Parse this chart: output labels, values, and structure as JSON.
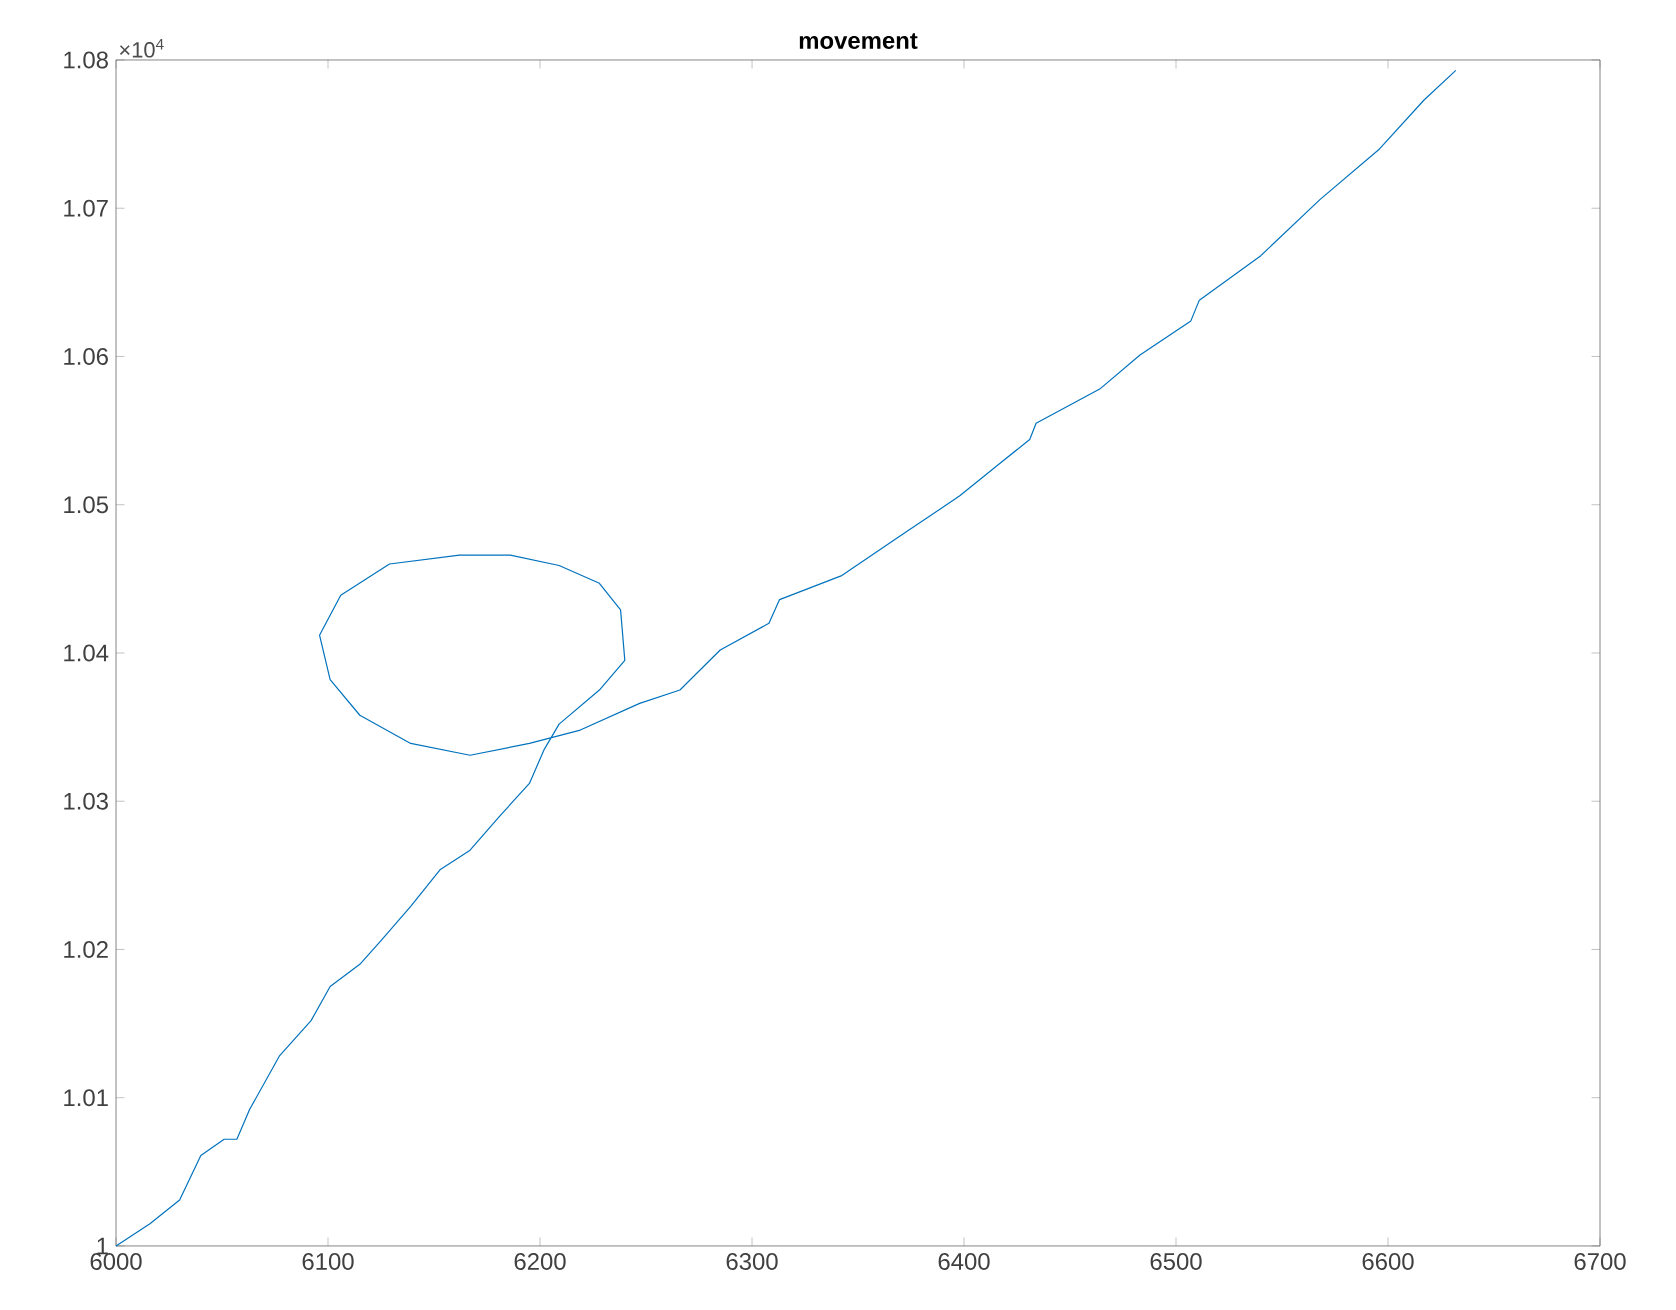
{
  "chart_data": {
    "type": "line",
    "title": "movement",
    "color": "#0072bd",
    "grid": false,
    "marker": "none",
    "line_style": "solid",
    "xlim": [
      6000,
      6700
    ],
    "xticks": [
      6000,
      6100,
      6200,
      6300,
      6400,
      6500,
      6600,
      6700
    ],
    "ylim": [
      1,
      1.08
    ],
    "yticks": [
      1,
      1.01,
      1.02,
      1.03,
      1.04,
      1.05,
      1.06,
      1.07,
      1.08
    ],
    "annotations": [
      "×10$^{4}$"
    ],
    "x": [
      6000,
      6016,
      6030,
      6040,
      6051,
      6057,
      6063,
      6077,
      6092,
      6101,
      6115,
      6125,
      6139,
      6153,
      6167,
      6181,
      6195,
      6202,
      6209,
      6228,
      6240,
      6238,
      6228,
      6209,
      6186,
      6162,
      6129,
      6106,
      6096,
      6101,
      6115,
      6139,
      6167,
      6195,
      6219,
      6247,
      6266,
      6285,
      6308,
      6313,
      6342,
      6370,
      6398,
      6417,
      6431,
      6434,
      6464,
      6483,
      6507,
      6511,
      6540,
      6568,
      6596,
      6617,
      6632
    ],
    "values": [
      1.0,
      1.0015,
      1.0031,
      1.0061,
      1.0072,
      1.0072,
      1.0092,
      1.0128,
      1.0152,
      1.0175,
      1.019,
      1.0206,
      1.0229,
      1.0254,
      1.0267,
      1.029,
      1.0312,
      1.0335,
      1.0352,
      1.0375,
      1.0395,
      1.0429,
      1.0447,
      1.0459,
      1.0466,
      1.0466,
      1.046,
      1.0439,
      1.0412,
      1.0382,
      1.0358,
      1.0339,
      1.0331,
      1.0339,
      1.0348,
      1.0366,
      1.0375,
      1.0402,
      1.042,
      1.0436,
      1.0452,
      1.0479,
      1.0506,
      1.0528,
      1.0544,
      1.0555,
      1.0578,
      1.0601,
      1.0624,
      1.0638,
      1.0668,
      1.0706,
      1.074,
      1.0773,
      1.0793
    ]
  }
}
